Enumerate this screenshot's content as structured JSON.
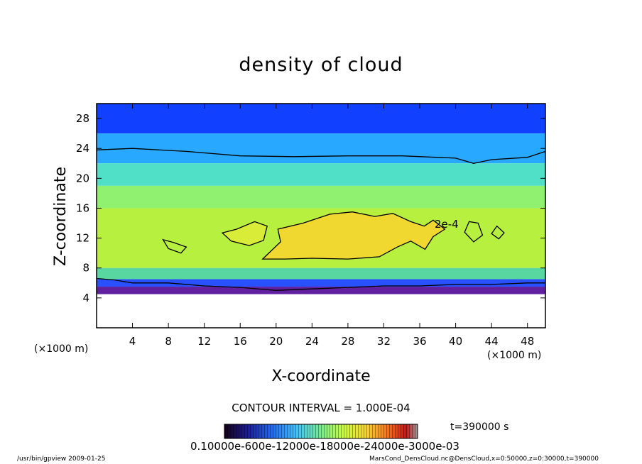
{
  "title": "density of cloud",
  "contour_interval": "CONTOUR INTERVAL = 1.000E-04",
  "time_label": "t=390000 s",
  "colorbar_labels": "0.10000e-600e-12000e-18000e-24000e-3000e-03",
  "footer_left": "/usr/bin/gpview   2009-01-25",
  "footer_right": "MarsCond_DensCloud.nc@DensCloud,x=0:50000,z=0:30000,t=390000",
  "chart_data": {
    "type": "heatmap",
    "title": "density of cloud",
    "xlabel": "X-coordinate",
    "ylabel": "Z-coordinate",
    "x_unit": "(×1000 m)",
    "y_unit": "(×1000 m)",
    "xlim": [
      0,
      50
    ],
    "ylim": [
      0,
      30
    ],
    "x_ticks": [
      4,
      8,
      12,
      16,
      20,
      24,
      28,
      32,
      36,
      40,
      44,
      48
    ],
    "y_ticks": [
      4,
      8,
      12,
      16,
      20,
      24,
      28
    ],
    "contour_label": "2e-4",
    "colorbar": [
      "#180018",
      "#1a1a9e",
      "#1c6cff",
      "#38c8ff",
      "#70f08a",
      "#c8ff30",
      "#ffd020",
      "#ff6a10",
      "#d01010",
      "#9a9a9a"
    ],
    "layers": [
      {
        "z_bottom": 26,
        "z_top": 30,
        "color": "#1240ff"
      },
      {
        "z_bottom": 22,
        "z_top": 26,
        "color": "#28a8ff"
      },
      {
        "z_bottom": 19,
        "z_top": 22,
        "color": "#50e0c8"
      },
      {
        "z_bottom": 16,
        "z_top": 19,
        "color": "#90f070"
      },
      {
        "z_bottom": 8,
        "z_top": 16,
        "color": "#b8f040"
      },
      {
        "z_bottom": 6.5,
        "z_top": 8,
        "color": "#58d8a0"
      },
      {
        "z_bottom": 5.5,
        "z_top": 6.5,
        "color": "#2850ff"
      },
      {
        "z_bottom": 4.5,
        "z_top": 5.5,
        "color": "#6020a0"
      }
    ],
    "contour_upper": [
      [
        0,
        23.8
      ],
      [
        4,
        24
      ],
      [
        10,
        23.6
      ],
      [
        16,
        23
      ],
      [
        22,
        22.9
      ],
      [
        28,
        23
      ],
      [
        34,
        23
      ],
      [
        38,
        22.8
      ],
      [
        40,
        22.7
      ],
      [
        42,
        22
      ],
      [
        44,
        22.5
      ],
      [
        48,
        22.8
      ],
      [
        50,
        23.6
      ]
    ],
    "contour_lower": [
      [
        0,
        6.6
      ],
      [
        2,
        6.4
      ],
      [
        4,
        6
      ],
      [
        8,
        6
      ],
      [
        12,
        5.6
      ],
      [
        16,
        5.4
      ],
      [
        20,
        5
      ],
      [
        24,
        5.2
      ],
      [
        28,
        5.4
      ],
      [
        32,
        5.6
      ],
      [
        36,
        5.6
      ],
      [
        40,
        5.8
      ],
      [
        44,
        5.8
      ],
      [
        48,
        6
      ],
      [
        50,
        6
      ]
    ],
    "contour_core": [
      [
        18.5,
        9.2
      ],
      [
        20.5,
        11.5
      ],
      [
        20.2,
        13.2
      ],
      [
        23,
        14
      ],
      [
        26,
        15.2
      ],
      [
        28.5,
        15.5
      ],
      [
        31,
        14.9
      ],
      [
        33,
        15.3
      ],
      [
        35,
        14.2
      ],
      [
        36.5,
        13.6
      ],
      [
        37.5,
        14.4
      ],
      [
        38.8,
        13.2
      ],
      [
        37.5,
        12.2
      ],
      [
        36.6,
        10.5
      ],
      [
        35,
        11.6
      ],
      [
        33.5,
        10.8
      ],
      [
        31.5,
        9.5
      ],
      [
        28,
        9.2
      ],
      [
        24,
        9.3
      ],
      [
        21,
        9.2
      ],
      [
        18.5,
        9.2
      ]
    ],
    "contour_left": [
      [
        14,
        12.7
      ],
      [
        15.6,
        13.2
      ],
      [
        17.6,
        14.2
      ],
      [
        19,
        13.6
      ],
      [
        18.6,
        11.7
      ],
      [
        17,
        11
      ],
      [
        15,
        11.6
      ],
      [
        14,
        12.7
      ]
    ],
    "contour_small_left": [
      [
        7.4,
        11.8
      ],
      [
        8.6,
        11.4
      ],
      [
        10,
        10.8
      ],
      [
        9.4,
        10
      ],
      [
        8,
        10.6
      ],
      [
        7.4,
        11.8
      ]
    ],
    "contour_blob1": [
      [
        41,
        12.8
      ],
      [
        41.5,
        14.2
      ],
      [
        42.5,
        14
      ],
      [
        43,
        12.4
      ],
      [
        42,
        11.5
      ],
      [
        41,
        12.8
      ]
    ],
    "contour_blob2": [
      [
        44,
        12.6
      ],
      [
        44.6,
        13.6
      ],
      [
        45.4,
        12.7
      ],
      [
        44.8,
        11.9
      ],
      [
        44,
        12.6
      ]
    ]
  }
}
